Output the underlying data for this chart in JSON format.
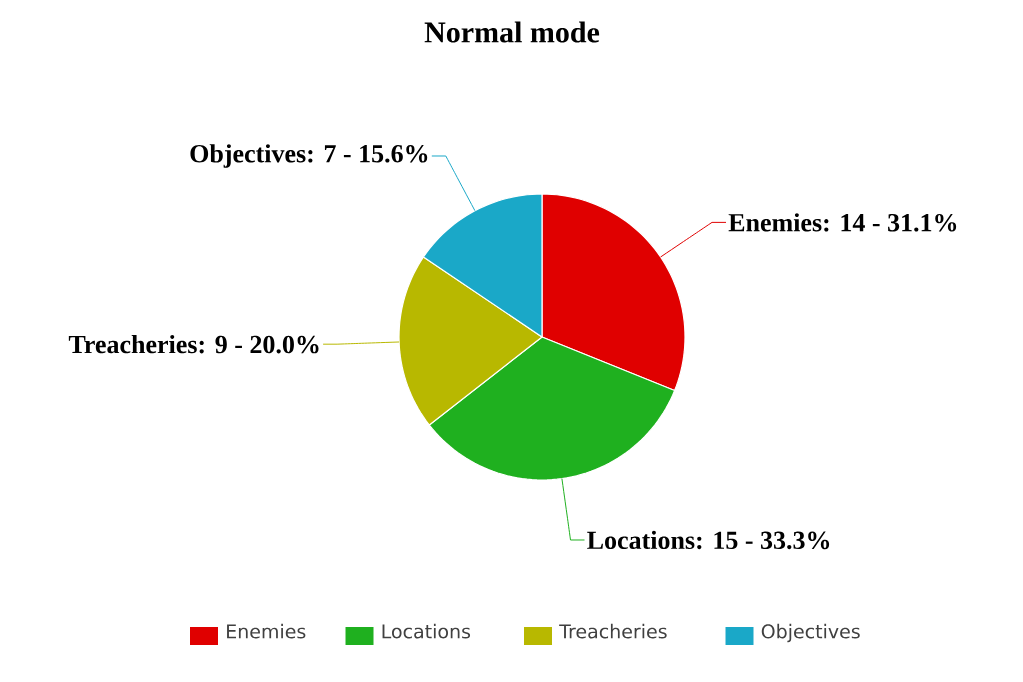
{
  "chart_data": {
    "type": "pie",
    "title": "Normal mode",
    "categories": [
      "Enemies",
      "Locations",
      "Treacheries",
      "Objectives"
    ],
    "values": [
      14,
      15,
      9,
      7
    ],
    "colors": [
      "#e00000",
      "#1fb01f",
      "#b8b800",
      "#1aa8c8"
    ],
    "value_labels": [
      "Enemies: 14 - 31.1%",
      "Locations: 15 - 33.3%",
      "Treacheries: 9 - 20.0%",
      "Objectives: 7 - 15.6%"
    ],
    "legend": "bottom"
  }
}
